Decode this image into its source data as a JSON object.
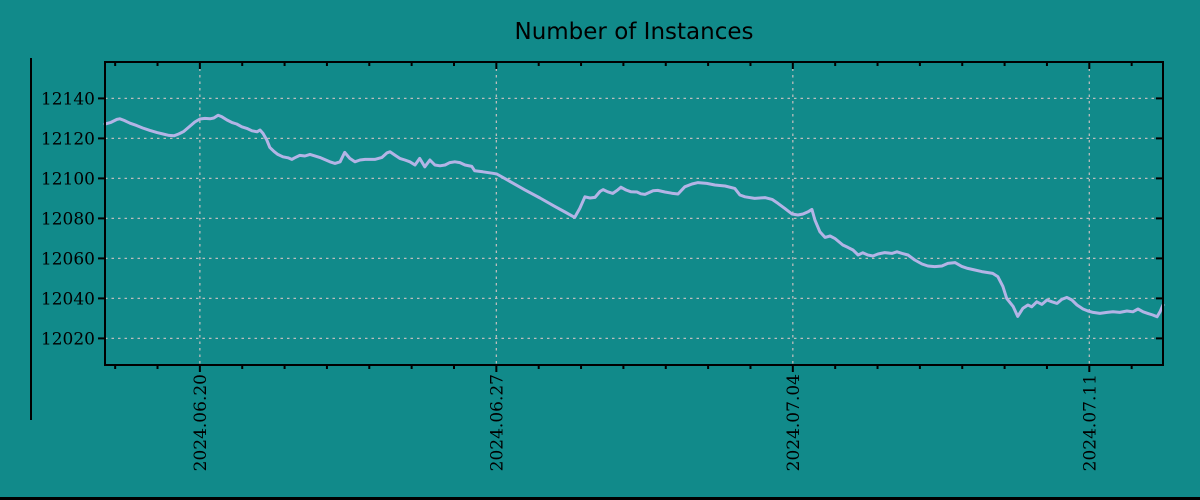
{
  "window": {
    "title": "Number of Instances"
  },
  "colors": {
    "background": "#118a8a",
    "line": "#b3b4e6",
    "grid": "#bdbdbd",
    "axis": "#000000",
    "text": "#000000",
    "bottom_strip": "#000000"
  },
  "chart_data": {
    "type": "line",
    "title": "Number of Instances",
    "xlabel": "",
    "ylabel": "",
    "legend": "none",
    "grid": "dashed",
    "x_unit": "days since 2024-06-20",
    "x_range": [
      -2.24,
      22.74
    ],
    "y_range": [
      12006.7,
      12158.2
    ],
    "x_ticks": [
      {
        "t": 0,
        "label": "2024.06.20"
      },
      {
        "t": 7,
        "label": "2024.06.27"
      },
      {
        "t": 14,
        "label": "2024.07.04"
      },
      {
        "t": 21,
        "label": "2024.07.11"
      }
    ],
    "x_minor_tick_every_days": 1,
    "y_ticks": [
      12020,
      12040,
      12060,
      12080,
      12100,
      12120,
      12140
    ],
    "series": [
      {
        "name": "instances",
        "color": "#b3b4e6",
        "points": [
          [
            -2.24,
            12127.2
          ],
          [
            -2.1,
            12128.0
          ],
          [
            -1.96,
            12129.5
          ],
          [
            -1.89,
            12129.8
          ],
          [
            -1.79,
            12129.0
          ],
          [
            -1.65,
            12127.6
          ],
          [
            -1.49,
            12126.4
          ],
          [
            -1.35,
            12125.2
          ],
          [
            -1.18,
            12124.0
          ],
          [
            -1.01,
            12122.9
          ],
          [
            -0.87,
            12122.2
          ],
          [
            -0.73,
            12121.5
          ],
          [
            -0.61,
            12121.3
          ],
          [
            -0.5,
            12122.2
          ],
          [
            -0.38,
            12123.5
          ],
          [
            -0.24,
            12126.0
          ],
          [
            -0.12,
            12128.2
          ],
          [
            0.0,
            12129.7
          ],
          [
            0.12,
            12130.0
          ],
          [
            0.24,
            12129.8
          ],
          [
            0.33,
            12130.2
          ],
          [
            0.43,
            12131.6
          ],
          [
            0.52,
            12130.8
          ],
          [
            0.64,
            12129.2
          ],
          [
            0.76,
            12127.9
          ],
          [
            0.87,
            12127.2
          ],
          [
            0.99,
            12125.8
          ],
          [
            1.11,
            12125.0
          ],
          [
            1.23,
            12123.8
          ],
          [
            1.35,
            12123.3
          ],
          [
            1.42,
            12124.2
          ],
          [
            1.49,
            12122.5
          ],
          [
            1.58,
            12119.2
          ],
          [
            1.65,
            12115.5
          ],
          [
            1.75,
            12113.5
          ],
          [
            1.84,
            12112.0
          ],
          [
            1.96,
            12110.8
          ],
          [
            2.08,
            12110.3
          ],
          [
            2.17,
            12109.5
          ],
          [
            2.24,
            12110.3
          ],
          [
            2.36,
            12111.5
          ],
          [
            2.48,
            12111.2
          ],
          [
            2.6,
            12112.0
          ],
          [
            2.83,
            12110.5
          ],
          [
            3.07,
            12108.3
          ],
          [
            3.19,
            12107.5
          ],
          [
            3.31,
            12108.3
          ],
          [
            3.42,
            12113.0
          ],
          [
            3.54,
            12110.0
          ],
          [
            3.66,
            12108.3
          ],
          [
            3.78,
            12109.2
          ],
          [
            3.9,
            12109.5
          ],
          [
            4.13,
            12109.5
          ],
          [
            4.3,
            12110.5
          ],
          [
            4.42,
            12112.8
          ],
          [
            4.49,
            12113.3
          ],
          [
            4.6,
            12111.7
          ],
          [
            4.72,
            12110.0
          ],
          [
            4.84,
            12109.2
          ],
          [
            4.96,
            12108.3
          ],
          [
            5.08,
            12106.7
          ],
          [
            5.19,
            12110.0
          ],
          [
            5.31,
            12105.8
          ],
          [
            5.43,
            12109.2
          ],
          [
            5.55,
            12106.7
          ],
          [
            5.67,
            12106.3
          ],
          [
            5.79,
            12106.7
          ],
          [
            5.9,
            12107.9
          ],
          [
            6.02,
            12108.3
          ],
          [
            6.14,
            12107.9
          ],
          [
            6.26,
            12106.7
          ],
          [
            6.42,
            12106.0
          ],
          [
            6.49,
            12103.8
          ],
          [
            6.68,
            12103.3
          ],
          [
            6.9,
            12102.6
          ],
          [
            7.01,
            12102.2
          ],
          [
            7.32,
            12098.5
          ],
          [
            7.67,
            12094.3
          ],
          [
            8.03,
            12090.2
          ],
          [
            8.38,
            12086.0
          ],
          [
            8.62,
            12083.2
          ],
          [
            8.85,
            12080.5
          ],
          [
            8.97,
            12085.0
          ],
          [
            9.09,
            12090.8
          ],
          [
            9.21,
            12090.2
          ],
          [
            9.33,
            12090.5
          ],
          [
            9.45,
            12093.5
          ],
          [
            9.52,
            12094.4
          ],
          [
            9.63,
            12093.3
          ],
          [
            9.75,
            12092.5
          ],
          [
            9.87,
            12094.3
          ],
          [
            9.94,
            12095.6
          ],
          [
            10.06,
            12094.2
          ],
          [
            10.18,
            12093.3
          ],
          [
            10.32,
            12093.2
          ],
          [
            10.41,
            12092.3
          ],
          [
            10.51,
            12092.0
          ],
          [
            10.7,
            12093.8
          ],
          [
            10.81,
            12094.0
          ],
          [
            10.98,
            12093.2
          ],
          [
            11.14,
            12092.6
          ],
          [
            11.29,
            12092.2
          ],
          [
            11.45,
            12095.8
          ],
          [
            11.62,
            12097.2
          ],
          [
            11.76,
            12097.9
          ],
          [
            11.97,
            12097.5
          ],
          [
            12.16,
            12096.7
          ],
          [
            12.4,
            12096.2
          ],
          [
            12.63,
            12095.0
          ],
          [
            12.75,
            12091.7
          ],
          [
            12.87,
            12090.8
          ],
          [
            13.1,
            12090.0
          ],
          [
            13.34,
            12090.4
          ],
          [
            13.51,
            12089.5
          ],
          [
            13.65,
            12087.5
          ],
          [
            13.81,
            12085.0
          ],
          [
            13.98,
            12082.2
          ],
          [
            14.12,
            12081.7
          ],
          [
            14.24,
            12082.2
          ],
          [
            14.36,
            12083.3
          ],
          [
            14.45,
            12084.5
          ],
          [
            14.52,
            12079.2
          ],
          [
            14.64,
            12073.3
          ],
          [
            14.76,
            12070.5
          ],
          [
            14.88,
            12071.2
          ],
          [
            14.99,
            12070.0
          ],
          [
            15.18,
            12066.7
          ],
          [
            15.3,
            12065.5
          ],
          [
            15.42,
            12064.2
          ],
          [
            15.54,
            12061.7
          ],
          [
            15.65,
            12062.8
          ],
          [
            15.77,
            12061.7
          ],
          [
            15.89,
            12061.2
          ],
          [
            16.01,
            12062.2
          ],
          [
            16.17,
            12062.9
          ],
          [
            16.34,
            12062.5
          ],
          [
            16.46,
            12063.3
          ],
          [
            16.58,
            12062.5
          ],
          [
            16.72,
            12061.7
          ],
          [
            16.88,
            12059.2
          ],
          [
            17.05,
            12057.2
          ],
          [
            17.19,
            12056.2
          ],
          [
            17.35,
            12055.9
          ],
          [
            17.52,
            12056.2
          ],
          [
            17.66,
            12057.5
          ],
          [
            17.83,
            12057.9
          ],
          [
            17.99,
            12056.0
          ],
          [
            18.13,
            12055.0
          ],
          [
            18.3,
            12054.2
          ],
          [
            18.46,
            12053.4
          ],
          [
            18.61,
            12052.9
          ],
          [
            18.72,
            12052.5
          ],
          [
            18.84,
            12050.9
          ],
          [
            18.96,
            12046.0
          ],
          [
            19.05,
            12040.0
          ],
          [
            19.2,
            12036.0
          ],
          [
            19.31,
            12031.0
          ],
          [
            19.43,
            12035.0
          ],
          [
            19.55,
            12036.7
          ],
          [
            19.64,
            12035.8
          ],
          [
            19.76,
            12038.3
          ],
          [
            19.88,
            12037.0
          ],
          [
            20.0,
            12039.2
          ],
          [
            20.12,
            12038.3
          ],
          [
            20.24,
            12037.5
          ],
          [
            20.35,
            12039.5
          ],
          [
            20.47,
            12040.5
          ],
          [
            20.59,
            12039.2
          ],
          [
            20.71,
            12036.7
          ],
          [
            20.85,
            12034.7
          ],
          [
            20.97,
            12033.7
          ],
          [
            21.09,
            12033.0
          ],
          [
            21.25,
            12032.5
          ],
          [
            21.42,
            12033.0
          ],
          [
            21.56,
            12033.3
          ],
          [
            21.72,
            12033.0
          ],
          [
            21.89,
            12033.7
          ],
          [
            22.03,
            12033.3
          ],
          [
            22.15,
            12034.7
          ],
          [
            22.27,
            12033.3
          ],
          [
            22.38,
            12032.5
          ],
          [
            22.5,
            12031.7
          ],
          [
            22.6,
            12030.8
          ],
          [
            22.67,
            12033.3
          ],
          [
            22.74,
            12036.7
          ]
        ]
      }
    ]
  }
}
